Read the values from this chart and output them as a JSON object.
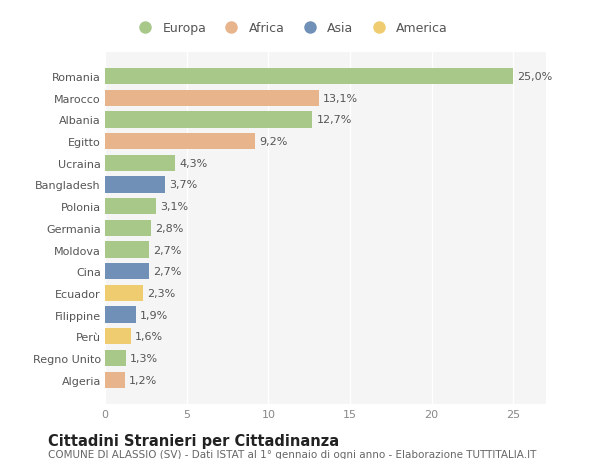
{
  "categories": [
    "Romania",
    "Marocco",
    "Albania",
    "Egitto",
    "Ucraina",
    "Bangladesh",
    "Polonia",
    "Germania",
    "Moldova",
    "Cina",
    "Ecuador",
    "Filippine",
    "Perù",
    "Regno Unito",
    "Algeria"
  ],
  "values": [
    25.0,
    13.1,
    12.7,
    9.2,
    4.3,
    3.7,
    3.1,
    2.8,
    2.7,
    2.7,
    2.3,
    1.9,
    1.6,
    1.3,
    1.2
  ],
  "labels": [
    "25,0%",
    "13,1%",
    "12,7%",
    "9,2%",
    "4,3%",
    "3,7%",
    "3,1%",
    "2,8%",
    "2,7%",
    "2,7%",
    "2,3%",
    "1,9%",
    "1,6%",
    "1,3%",
    "1,2%"
  ],
  "continents": [
    "Europa",
    "Africa",
    "Europa",
    "Africa",
    "Europa",
    "Asia",
    "Europa",
    "Europa",
    "Europa",
    "Asia",
    "America",
    "Asia",
    "America",
    "Europa",
    "Africa"
  ],
  "continent_colors": {
    "Europa": "#a8c88a",
    "Africa": "#e8b48c",
    "Asia": "#7090b8",
    "America": "#f0cc70"
  },
  "legend_order": [
    "Europa",
    "Africa",
    "Asia",
    "America"
  ],
  "title": "Cittadini Stranieri per Cittadinanza",
  "subtitle": "COMUNE DI ALASSIO (SV) - Dati ISTAT al 1° gennaio di ogni anno - Elaborazione TUTTITALIA.IT",
  "xlim": [
    0,
    27
  ],
  "xticks": [
    0,
    5,
    10,
    15,
    20,
    25
  ],
  "background_color": "#ffffff",
  "plot_bg_color": "#f5f5f5",
  "grid_color": "#ffffff",
  "bar_height": 0.75,
  "label_fontsize": 8,
  "tick_fontsize": 8,
  "title_fontsize": 10.5,
  "subtitle_fontsize": 7.5,
  "legend_fontsize": 9
}
